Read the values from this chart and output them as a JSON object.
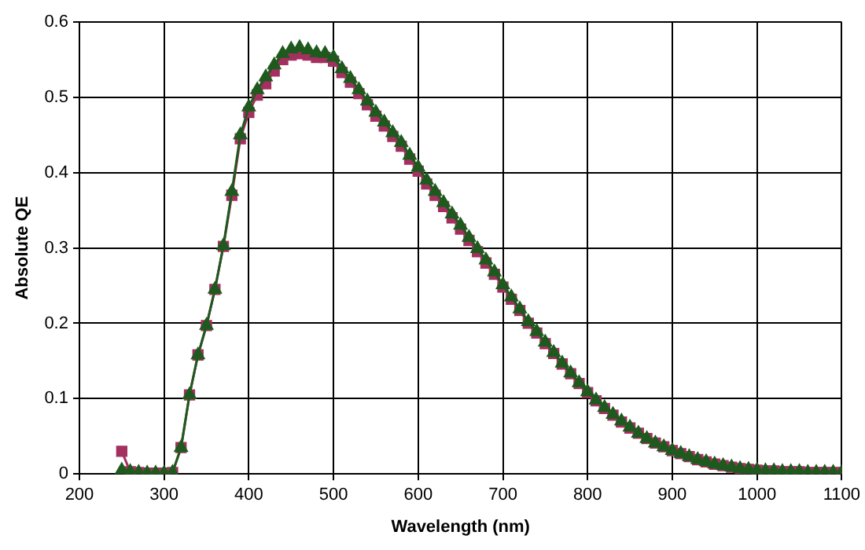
{
  "chart_data": {
    "type": "line",
    "xlabel": "Wavelength (nm)",
    "ylabel": "Absolute QE",
    "x": [
      250,
      260,
      270,
      280,
      290,
      300,
      310,
      320,
      330,
      340,
      350,
      360,
      370,
      380,
      390,
      400,
      410,
      420,
      430,
      440,
      450,
      460,
      470,
      480,
      490,
      500,
      510,
      520,
      530,
      540,
      550,
      560,
      570,
      580,
      590,
      600,
      610,
      620,
      630,
      640,
      650,
      660,
      670,
      680,
      690,
      700,
      710,
      720,
      730,
      740,
      750,
      760,
      770,
      780,
      790,
      800,
      810,
      820,
      830,
      840,
      850,
      860,
      870,
      880,
      890,
      900,
      910,
      920,
      930,
      940,
      950,
      960,
      970,
      980,
      990,
      1000,
      1010,
      1020,
      1030,
      1040,
      1050,
      1060,
      1070,
      1080,
      1090,
      1100
    ],
    "series": [
      {
        "color": "#1e5a1e",
        "marker": "triangle",
        "values": [
          0.005,
          0.003,
          0.002,
          0.001,
          0.001,
          0.001,
          0.002,
          0.035,
          0.105,
          0.158,
          0.197,
          0.245,
          0.303,
          0.375,
          0.45,
          0.487,
          0.51,
          0.527,
          0.543,
          0.558,
          0.564,
          0.566,
          0.563,
          0.559,
          0.558,
          0.553,
          0.538,
          0.525,
          0.51,
          0.495,
          0.48,
          0.467,
          0.453,
          0.44,
          0.423,
          0.407,
          0.39,
          0.375,
          0.36,
          0.345,
          0.33,
          0.314,
          0.299,
          0.284,
          0.268,
          0.251,
          0.235,
          0.219,
          0.202,
          0.189,
          0.175,
          0.161,
          0.147,
          0.134,
          0.121,
          0.109,
          0.098,
          0.088,
          0.079,
          0.07,
          0.062,
          0.054,
          0.047,
          0.041,
          0.036,
          0.031,
          0.027,
          0.023,
          0.019,
          0.016,
          0.013,
          0.011,
          0.009,
          0.007,
          0.006,
          0.005,
          0.004,
          0.004,
          0.003,
          0.003,
          0.003,
          0.002,
          0.002,
          0.002,
          0.002,
          0.002
        ]
      },
      {
        "color": "#a3305f",
        "marker": "square",
        "values": [
          0.03,
          0.003,
          0.002,
          0.001,
          0.001,
          0.001,
          0.002,
          0.035,
          0.105,
          0.158,
          0.197,
          0.245,
          0.302,
          0.37,
          0.445,
          0.48,
          0.503,
          0.518,
          0.535,
          0.55,
          0.556,
          0.558,
          0.556,
          0.553,
          0.553,
          0.548,
          0.533,
          0.52,
          0.505,
          0.49,
          0.475,
          0.462,
          0.448,
          0.435,
          0.418,
          0.402,
          0.385,
          0.37,
          0.355,
          0.34,
          0.325,
          0.31,
          0.295,
          0.28,
          0.265,
          0.248,
          0.232,
          0.217,
          0.2,
          0.187,
          0.173,
          0.16,
          0.146,
          0.133,
          0.12,
          0.108,
          0.097,
          0.087,
          0.078,
          0.069,
          0.061,
          0.054,
          0.047,
          0.041,
          0.036,
          0.031,
          0.027,
          0.023,
          0.019,
          0.016,
          0.013,
          0.011,
          0.009,
          0.007,
          0.006,
          0.005,
          0.004,
          0.004,
          0.003,
          0.003,
          0.003,
          0.002,
          0.002,
          0.002,
          0.002,
          0.002
        ]
      }
    ],
    "xlim": [
      200,
      1100
    ],
    "xticks": [
      200,
      300,
      400,
      500,
      600,
      700,
      800,
      900,
      1000,
      1100
    ],
    "ylim": [
      0,
      0.6
    ],
    "yticks": [
      0,
      0.1,
      0.2,
      0.3,
      0.4,
      0.5,
      0.6
    ],
    "grid": true,
    "legend": false,
    "line_style": "solid"
  }
}
